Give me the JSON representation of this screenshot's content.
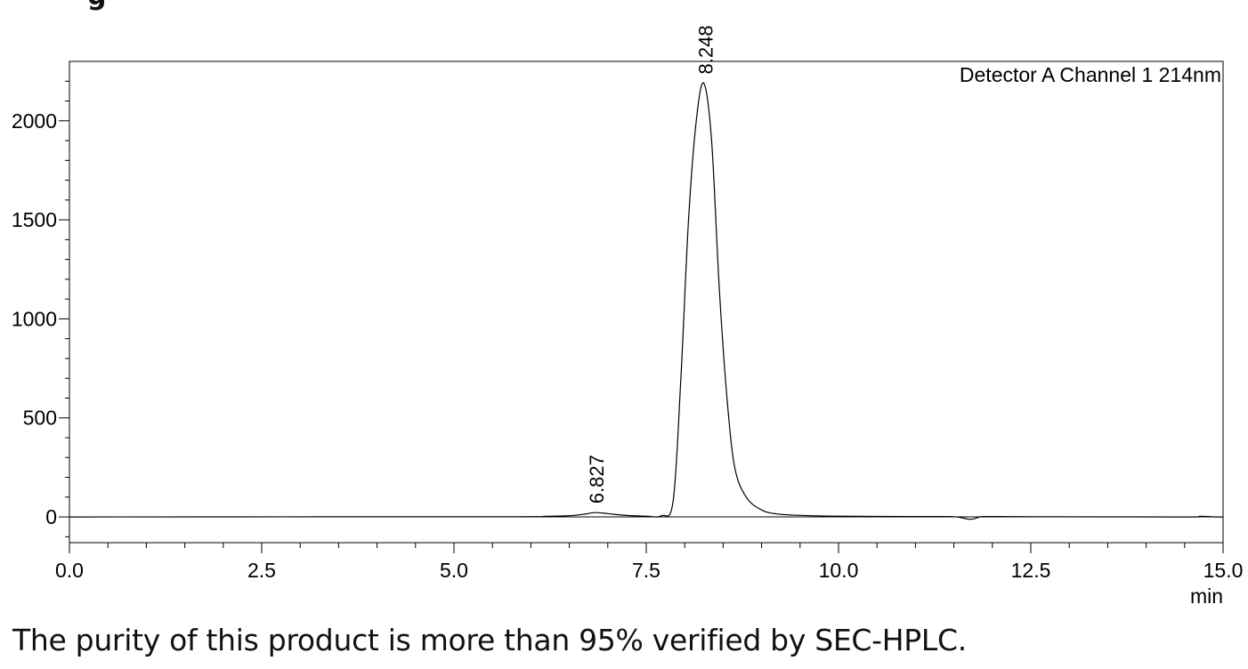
{
  "chart_data": {
    "type": "line",
    "detector_label": "Detector A Channel 1 214nm",
    "x_unit_label": "min",
    "xlim": [
      0.0,
      15.0
    ],
    "ylim": [
      -130,
      2300
    ],
    "x_ticks": [
      "0.0",
      "2.5",
      "5.0",
      "7.5",
      "10.0",
      "12.5",
      "15.0"
    ],
    "x_tick_values": [
      0,
      2.5,
      5,
      7.5,
      10,
      12.5,
      15
    ],
    "y_ticks": [
      "0",
      "500",
      "1000",
      "1500",
      "2000"
    ],
    "y_tick_values": [
      0,
      500,
      1000,
      1500,
      2000
    ],
    "grid": false,
    "series": [
      {
        "x": [
          0,
          5.5,
          6.2,
          6.5,
          6.7,
          6.827,
          7.0,
          7.2,
          7.5,
          7.7,
          7.85,
          7.95,
          8.05,
          8.15,
          8.248,
          8.35,
          8.45,
          8.55,
          8.65,
          8.8,
          9.0,
          9.2,
          9.5,
          10.0,
          11.0,
          11.5,
          11.7,
          11.8,
          11.9,
          12.5,
          14.5,
          14.7,
          14.9,
          15.0
        ],
        "y": [
          0,
          1,
          3,
          6,
          14,
          22,
          17,
          9,
          4,
          6,
          80,
          700,
          1500,
          2000,
          2190,
          1900,
          1150,
          600,
          250,
          100,
          35,
          15,
          8,
          4,
          2,
          1,
          -12,
          -5,
          2,
          1,
          0,
          3,
          0,
          0
        ]
      }
    ],
    "peak_labels": [
      {
        "x": 6.827,
        "y": 22,
        "label": "6.827"
      },
      {
        "x": 8.248,
        "y": 2190,
        "label": "8.248"
      }
    ]
  },
  "caption": "The purity of this product is more than 95% verified by SEC-HPLC.",
  "title_fragment": "g"
}
